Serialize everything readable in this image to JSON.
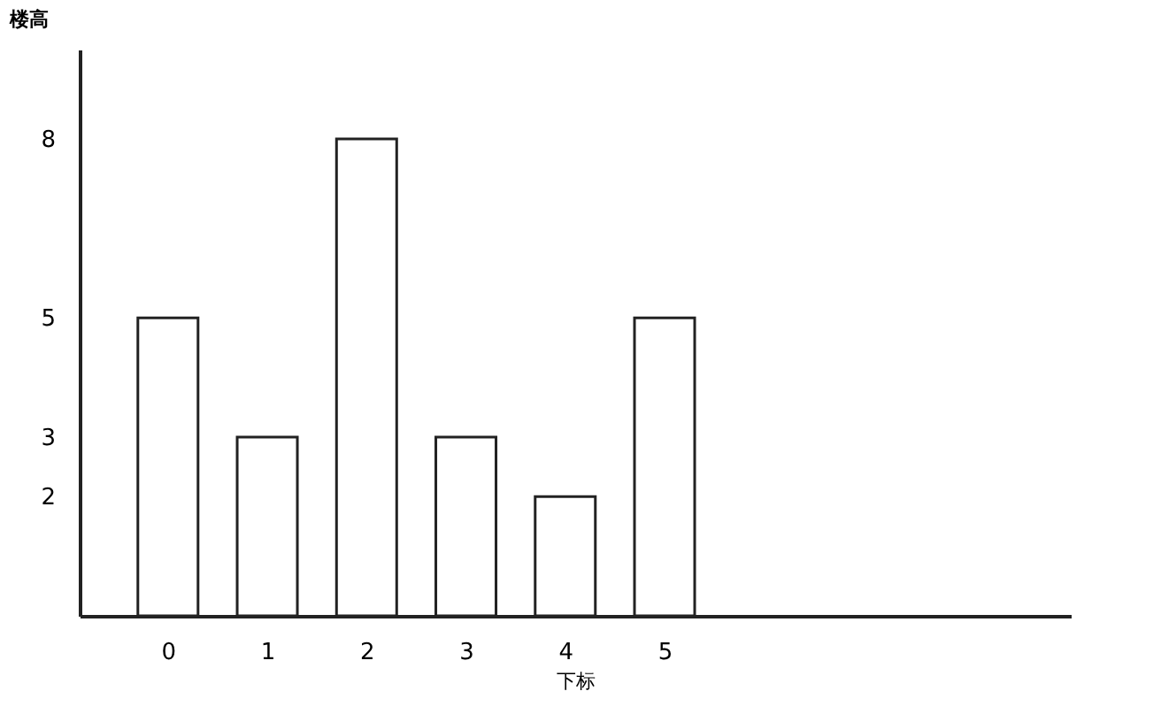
{
  "chart_data": {
    "type": "bar",
    "xlabel": "下标",
    "ylabel": "楼高",
    "categories": [
      "0",
      "1",
      "2",
      "3",
      "4",
      "5"
    ],
    "values": [
      5,
      3,
      8,
      3,
      2,
      5
    ],
    "color": "#ffffff",
    "ylim": [
      0,
      9.5
    ],
    "yticks": [
      2,
      3,
      5,
      8
    ],
    "grid": false
  }
}
